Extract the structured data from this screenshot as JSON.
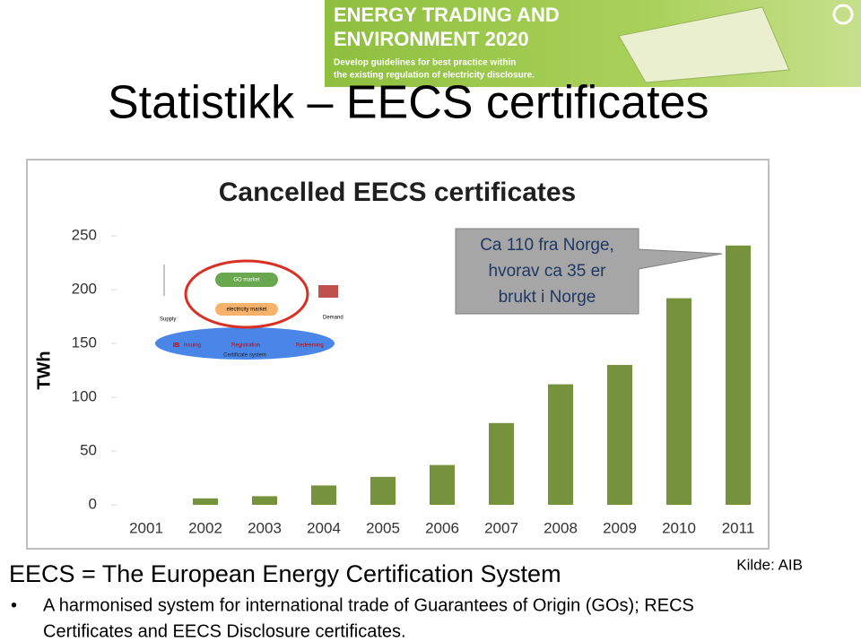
{
  "slide": {
    "title": "Statistikk – EECS certificates"
  },
  "banner": {
    "title_lines": [
      "ENERGY TRADING AND",
      "ENVIRONMENT 2020"
    ],
    "subtitle_lines": [
      "Develop guidelines for best practice within",
      "the existing regulation of electricity disclosure."
    ]
  },
  "chart_data": {
    "type": "bar",
    "title": "Cancelled EECS certificates",
    "y_label": "TWh",
    "categories": [
      "2001",
      "2002",
      "2003",
      "2004",
      "2005",
      "2006",
      "2007",
      "2008",
      "2009",
      "2010",
      "2011"
    ],
    "values": [
      0,
      6,
      8,
      18,
      26,
      37,
      76,
      112,
      130,
      192,
      241
    ],
    "color": "#76923c",
    "ylim": [
      0,
      250
    ],
    "yticks": [
      0,
      50,
      100,
      150,
      200,
      250
    ],
    "grid": false
  },
  "callout": {
    "lines": [
      "Ca 110 fra Norge,",
      "hvorav  ca 35 er",
      "brukt i Norge"
    ]
  },
  "inset": {
    "supply": "Supply",
    "go_market": "GO market",
    "electricity_market": "electricity market",
    "demand": "Demand",
    "ib": "IB",
    "issuing": "Issuing",
    "registration": "Registration",
    "redeeming": "Redeeming",
    "certificate_system": "Certificate system"
  },
  "footer": {
    "heading": "EECS = The European Energy Certification System",
    "source": "Kilde: AIB",
    "bullet_lines": [
      "A harmonised system for international trade of Guarantees of Origin (GOs); RECS",
      "Certificates and EECS Disclosure certificates."
    ]
  }
}
